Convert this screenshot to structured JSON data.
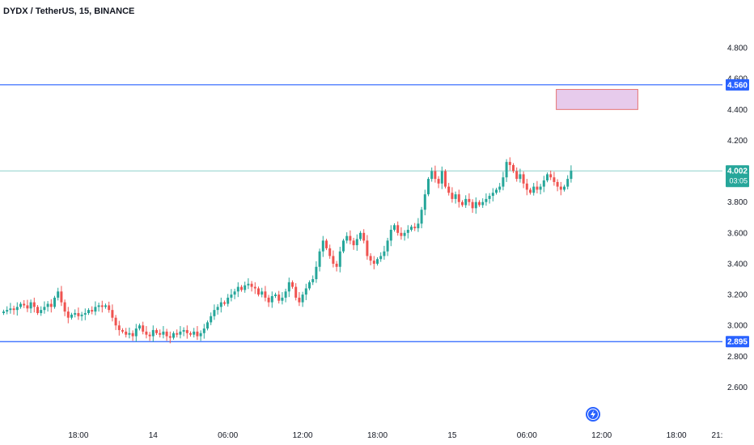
{
  "chart_data": {
    "type": "candlestick",
    "title": "DYDX / TetherUS, 15, BINANCE",
    "ylim": [
      2.55,
      4.9
    ],
    "y_ticks": [
      "4.800",
      "4.600",
      "4.400",
      "4.200",
      "3.800",
      "3.600",
      "3.400",
      "3.200",
      "3.000",
      "2.800",
      "2.600"
    ],
    "y_tick_values": [
      4.8,
      4.6,
      4.4,
      4.2,
      3.8,
      3.6,
      3.4,
      3.2,
      3.0,
      2.8,
      2.6
    ],
    "x_ticks": [
      "18:00",
      "14",
      "06:00",
      "12:00",
      "18:00",
      "15",
      "06:00",
      "12:00",
      "18:00",
      "21:"
    ],
    "x_tick_bars": [
      22,
      44,
      66,
      88,
      110,
      132,
      154,
      176,
      198,
      210
    ],
    "horizontal_lines": [
      {
        "label": "4.560",
        "value": 4.56,
        "color": "#2962ff"
      },
      {
        "label": "2.895",
        "value": 2.895,
        "color": "#2962ff"
      }
    ],
    "last_price": {
      "label": "4.002",
      "countdown": "03:05",
      "value": 4.002,
      "color": "#26a69a"
    },
    "zone": {
      "x_start_bar": 163,
      "x_end_bar": 187,
      "y_top": 4.53,
      "y_bottom": 4.4,
      "fill": "#e1bee7",
      "stroke": "#e57373"
    },
    "series_close": [
      3.09,
      3.1,
      3.11,
      3.1,
      3.12,
      3.14,
      3.13,
      3.11,
      3.15,
      3.12,
      3.08,
      3.1,
      3.12,
      3.14,
      3.12,
      3.18,
      3.22,
      3.15,
      3.09,
      3.05,
      3.07,
      3.08,
      3.06,
      3.07,
      3.08,
      3.1,
      3.09,
      3.12,
      3.13,
      3.12,
      3.13,
      3.1,
      3.05,
      3.0,
      2.97,
      2.96,
      2.94,
      2.95,
      2.93,
      2.98,
      3.0,
      2.96,
      2.94,
      2.93,
      2.97,
      2.95,
      2.94,
      2.96,
      2.93,
      2.92,
      2.95,
      2.94,
      2.96,
      2.97,
      2.95,
      2.94,
      2.96,
      2.93,
      2.95,
      2.98,
      3.02,
      3.06,
      3.1,
      3.12,
      3.15,
      3.14,
      3.18,
      3.2,
      3.22,
      3.25,
      3.23,
      3.26,
      3.27,
      3.25,
      3.24,
      3.2,
      3.22,
      3.18,
      3.15,
      3.19,
      3.2,
      3.16,
      3.18,
      3.22,
      3.28,
      3.25,
      3.18,
      3.15,
      3.2,
      3.24,
      3.28,
      3.3,
      3.38,
      3.48,
      3.55,
      3.5,
      3.45,
      3.4,
      3.38,
      3.48,
      3.55,
      3.58,
      3.55,
      3.52,
      3.56,
      3.6,
      3.55,
      3.45,
      3.42,
      3.4,
      3.43,
      3.45,
      3.48,
      3.55,
      3.62,
      3.65,
      3.6,
      3.58,
      3.6,
      3.62,
      3.64,
      3.63,
      3.66,
      3.75,
      3.85,
      3.95,
      4.0,
      3.95,
      3.92,
      4.0,
      3.9,
      3.86,
      3.82,
      3.85,
      3.8,
      3.78,
      3.82,
      3.8,
      3.76,
      3.8,
      3.78,
      3.8,
      3.82,
      3.84,
      3.86,
      3.88,
      3.9,
      3.96,
      4.06,
      4.04,
      4.0,
      3.95,
      3.98,
      3.92,
      3.88,
      3.86,
      3.9,
      3.88,
      3.9,
      3.94,
      3.98,
      3.96,
      3.93,
      3.9,
      3.88,
      3.9,
      3.95,
      4.002
    ]
  }
}
